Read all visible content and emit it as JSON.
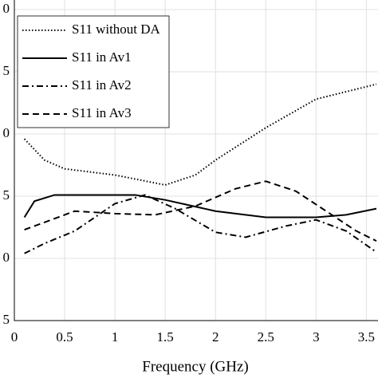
{
  "chart_data": {
    "type": "line",
    "x_label": "Frequency (GHz)",
    "xlim": [
      0,
      3.6
    ],
    "xticks": [
      0,
      0.5,
      1,
      1.5,
      2,
      2.5,
      3,
      3.5
    ],
    "ylim": [
      -25,
      0
    ],
    "yticks": [
      {
        "value": -25,
        "label": "5"
      },
      {
        "value": -20,
        "label": "0"
      },
      {
        "value": -15,
        "label": "5"
      },
      {
        "value": -10,
        "label": "0"
      },
      {
        "value": -5,
        "label": "5"
      },
      0
    ],
    "grid": true,
    "legend": "upper-left",
    "series": [
      {
        "name": "S11 without DA",
        "color": "#000000",
        "dash": "dotted",
        "x": [
          0.1,
          0.3,
          0.5,
          1,
          1.5,
          1.8,
          2,
          2.5,
          3,
          3.5,
          3.6
        ],
        "values": [
          -10.4,
          -12.1,
          -12.8,
          -13.3,
          -14.1,
          -13.3,
          -12.1,
          -9.5,
          -7.2,
          -6.2,
          -6.0
        ]
      },
      {
        "name": "S11 in Av1",
        "color": "#000000",
        "dash": "solid",
        "x": [
          0.1,
          0.2,
          0.4,
          0.8,
          1.2,
          1.5,
          2,
          2.5,
          3,
          3.3,
          3.6
        ],
        "values": [
          -16.7,
          -15.4,
          -14.9,
          -14.9,
          -14.9,
          -15.3,
          -16.2,
          -16.7,
          -16.7,
          -16.5,
          -16.0
        ]
      },
      {
        "name": "S11 in Av2",
        "color": "#000000",
        "dash": "dashdot",
        "x": [
          0.1,
          0.3,
          0.6,
          1,
          1.3,
          1.6,
          2,
          2.3,
          2.7,
          3,
          3.3,
          3.6
        ],
        "values": [
          -19.6,
          -18.8,
          -17.8,
          -15.6,
          -14.9,
          -16.0,
          -17.9,
          -18.3,
          -17.4,
          -16.9,
          -17.8,
          -19.5
        ]
      },
      {
        "name": "S11 in Av3",
        "color": "#000000",
        "dash": "dashed",
        "x": [
          0.1,
          0.3,
          0.6,
          1,
          1.4,
          1.8,
          2.2,
          2.5,
          2.8,
          3.1,
          3.4,
          3.6
        ],
        "values": [
          -17.7,
          -17.1,
          -16.2,
          -16.4,
          -16.5,
          -15.8,
          -14.4,
          -13.8,
          -14.6,
          -16.2,
          -17.8,
          -18.6
        ]
      }
    ]
  }
}
